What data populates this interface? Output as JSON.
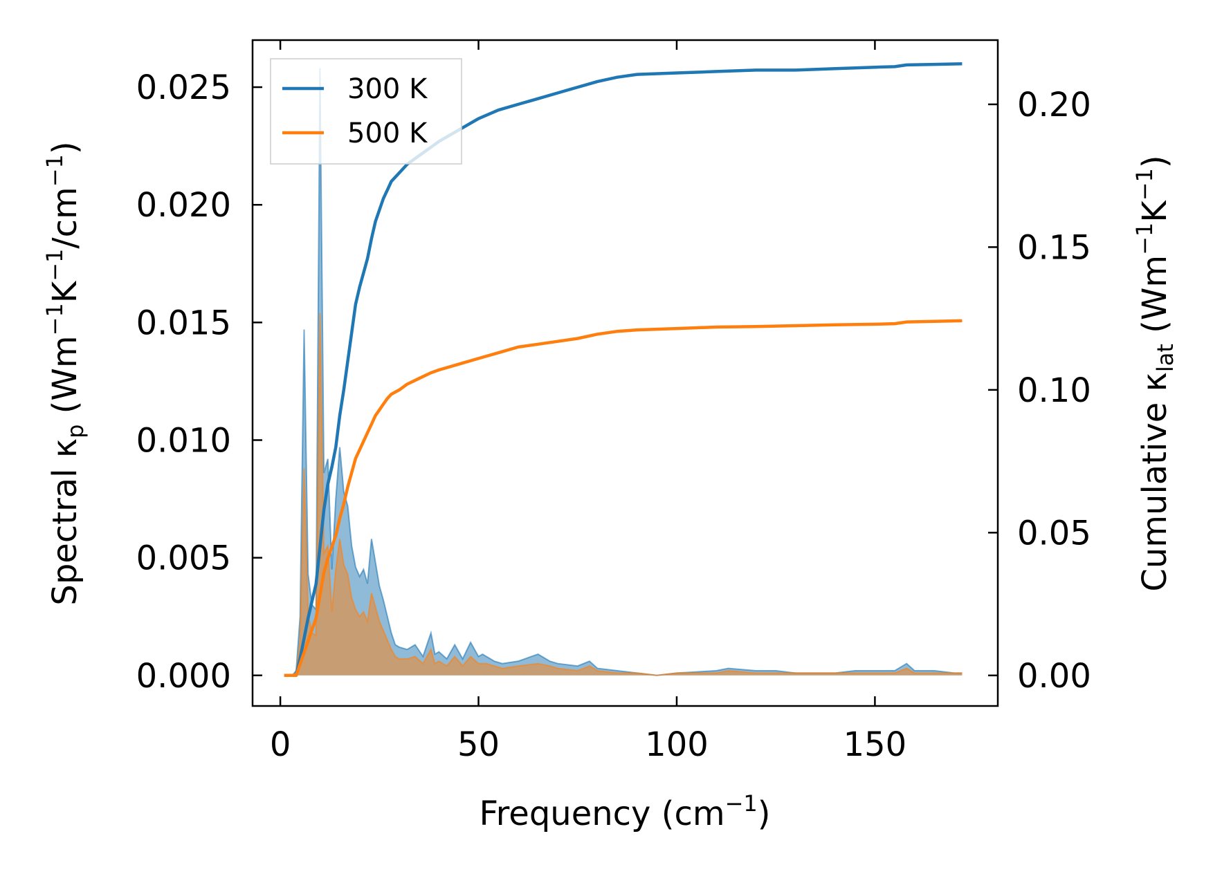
{
  "chart_data": {
    "type": "line",
    "xlabel": {
      "main": "Frequency (cm",
      "sup": "−1",
      "tail": ")"
    },
    "ylabel_left": {
      "main": "Spectral κ",
      "sub": "p",
      "rest": " (Wm",
      "sup1": "−1",
      "mid": "K",
      "sup2": "−1",
      "mid2": "/cm",
      "sup3": "−1",
      "tail": ")"
    },
    "ylabel_right": {
      "main": "Cumulative κ",
      "sub": "lat",
      "rest": " (Wm",
      "sup1": "−1",
      "mid": "K",
      "sup2": "−1",
      "tail": ")"
    },
    "xlim": [
      -7,
      181
    ],
    "ylim_left": [
      -0.0013,
      0.027
    ],
    "ylim_right": [
      -0.0107,
      0.2225
    ],
    "xticks": [
      0,
      50,
      100,
      150
    ],
    "xtick_labels": [
      "0",
      "50",
      "100",
      "150"
    ],
    "yticks_left": [
      0.0,
      0.005,
      0.01,
      0.015,
      0.02,
      0.025
    ],
    "ytick_labels_left": [
      "0.000",
      "0.005",
      "0.010",
      "0.015",
      "0.020",
      "0.025"
    ],
    "yticks_right": [
      0.0,
      0.05,
      0.1,
      0.15,
      0.2
    ],
    "ytick_labels_right": [
      "0.00",
      "0.05",
      "0.10",
      "0.15",
      "0.20"
    ],
    "legend": {
      "position": "upper-left",
      "entries": [
        "300 K",
        "500 K"
      ]
    },
    "spectral_series": [
      {
        "name": "300 K",
        "color": "#1f77b4",
        "x": [
          1,
          3,
          4,
          5,
          6,
          7,
          8,
          9,
          10,
          11,
          12,
          13,
          14,
          15,
          16,
          17,
          18,
          19,
          20,
          21,
          22,
          23,
          24,
          25,
          26,
          27,
          28,
          29,
          30,
          32,
          34,
          36,
          38,
          39,
          40,
          42,
          44,
          46,
          48,
          50,
          51,
          52,
          54,
          56,
          60,
          65,
          68,
          70,
          75,
          78,
          80,
          85,
          90,
          95,
          100,
          110,
          113,
          120,
          125,
          130,
          140,
          145,
          150,
          155,
          158,
          160,
          165,
          170,
          172
        ],
        "y": [
          0.0,
          0.0,
          0.0002,
          0.0025,
          0.0147,
          0.0043,
          0.003,
          0.0028,
          0.0258,
          0.0086,
          0.0092,
          0.0045,
          0.0075,
          0.0097,
          0.0078,
          0.0072,
          0.0055,
          0.0046,
          0.0042,
          0.0045,
          0.0039,
          0.0058,
          0.0048,
          0.0038,
          0.0032,
          0.0025,
          0.0018,
          0.0013,
          0.0012,
          0.0011,
          0.0013,
          0.0008,
          0.0018,
          0.0009,
          0.001,
          0.0007,
          0.0013,
          0.0007,
          0.0014,
          0.0008,
          0.0009,
          0.0008,
          0.0006,
          0.0005,
          0.0006,
          0.0009,
          0.0006,
          0.0005,
          0.0004,
          0.0006,
          0.0003,
          0.0002,
          0.0001,
          0.0,
          0.0001,
          0.0002,
          0.0003,
          0.0002,
          0.0002,
          0.0001,
          0.0001,
          0.0002,
          0.0002,
          0.0002,
          0.0005,
          0.0002,
          0.0002,
          0.0001,
          0.0001
        ]
      },
      {
        "name": "500 K",
        "color": "#ff7f0e",
        "x": [
          1,
          3,
          4,
          5,
          6,
          7,
          8,
          9,
          10,
          11,
          12,
          13,
          14,
          15,
          16,
          17,
          18,
          19,
          20,
          21,
          22,
          23,
          24,
          25,
          26,
          27,
          28,
          29,
          30,
          32,
          34,
          36,
          38,
          39,
          40,
          42,
          44,
          46,
          48,
          50,
          51,
          52,
          54,
          56,
          60,
          65,
          68,
          70,
          75,
          78,
          80,
          85,
          90,
          95,
          100,
          110,
          113,
          120,
          125,
          130,
          140,
          145,
          150,
          155,
          158,
          160,
          165,
          170,
          172
        ],
        "y": [
          0.0,
          0.0,
          0.0001,
          0.0015,
          0.0088,
          0.0026,
          0.0018,
          0.0017,
          0.0154,
          0.0052,
          0.0055,
          0.0027,
          0.0045,
          0.0058,
          0.0047,
          0.0043,
          0.0033,
          0.0028,
          0.0025,
          0.0027,
          0.0023,
          0.0035,
          0.0029,
          0.0023,
          0.0019,
          0.0015,
          0.0011,
          0.0008,
          0.0007,
          0.0007,
          0.0008,
          0.0005,
          0.0011,
          0.0005,
          0.0006,
          0.0004,
          0.0008,
          0.0004,
          0.0008,
          0.0005,
          0.0005,
          0.0005,
          0.0004,
          0.0003,
          0.0004,
          0.0005,
          0.0004,
          0.0003,
          0.0002,
          0.0004,
          0.0002,
          0.0001,
          0.0001,
          0.0,
          0.0001,
          0.0001,
          0.0002,
          0.0001,
          0.0001,
          0.0001,
          0.0001,
          0.0001,
          0.0001,
          0.0001,
          0.0003,
          0.0001,
          0.0001,
          0.0001,
          0.0001
        ]
      }
    ],
    "cumulative_series": [
      {
        "name": "300 K",
        "color": "#1f77b4",
        "x": [
          1,
          4,
          5,
          6,
          7,
          8,
          9,
          10,
          11,
          12,
          13,
          14,
          15,
          16,
          17,
          18,
          19,
          20,
          21,
          22,
          23,
          24,
          25,
          26,
          27,
          28,
          30,
          32,
          35,
          38,
          40,
          45,
          50,
          55,
          60,
          65,
          70,
          75,
          80,
          85,
          90,
          100,
          110,
          120,
          130,
          140,
          150,
          155,
          158,
          165,
          172
        ],
        "y": [
          0.0,
          0.0,
          0.006,
          0.013,
          0.02,
          0.026,
          0.032,
          0.045,
          0.058,
          0.067,
          0.073,
          0.08,
          0.091,
          0.1,
          0.11,
          0.12,
          0.13,
          0.136,
          0.141,
          0.146,
          0.153,
          0.159,
          0.163,
          0.167,
          0.17,
          0.173,
          0.176,
          0.179,
          0.182,
          0.185,
          0.187,
          0.191,
          0.195,
          0.198,
          0.2,
          0.202,
          0.204,
          0.206,
          0.208,
          0.2095,
          0.2105,
          0.211,
          0.2115,
          0.212,
          0.212,
          0.2125,
          0.213,
          0.2132,
          0.2138,
          0.214,
          0.2142
        ]
      },
      {
        "name": "500 K",
        "color": "#ff7f0e",
        "x": [
          1,
          4,
          5,
          6,
          7,
          8,
          9,
          10,
          11,
          12,
          13,
          14,
          15,
          16,
          17,
          18,
          19,
          20,
          21,
          22,
          23,
          24,
          25,
          26,
          27,
          28,
          30,
          32,
          35,
          38,
          40,
          45,
          50,
          55,
          60,
          65,
          70,
          75,
          80,
          85,
          90,
          100,
          110,
          120,
          130,
          140,
          150,
          155,
          158,
          165,
          172
        ],
        "y": [
          0.0,
          0.0,
          0.004,
          0.008,
          0.012,
          0.016,
          0.02,
          0.028,
          0.036,
          0.041,
          0.045,
          0.049,
          0.055,
          0.06,
          0.066,
          0.071,
          0.076,
          0.079,
          0.082,
          0.085,
          0.088,
          0.091,
          0.093,
          0.095,
          0.097,
          0.0985,
          0.1,
          0.102,
          0.104,
          0.106,
          0.107,
          0.109,
          0.111,
          0.113,
          0.115,
          0.116,
          0.117,
          0.118,
          0.1195,
          0.1205,
          0.121,
          0.1215,
          0.122,
          0.1222,
          0.1225,
          0.1228,
          0.123,
          0.1232,
          0.1238,
          0.124,
          0.1242
        ]
      }
    ]
  }
}
